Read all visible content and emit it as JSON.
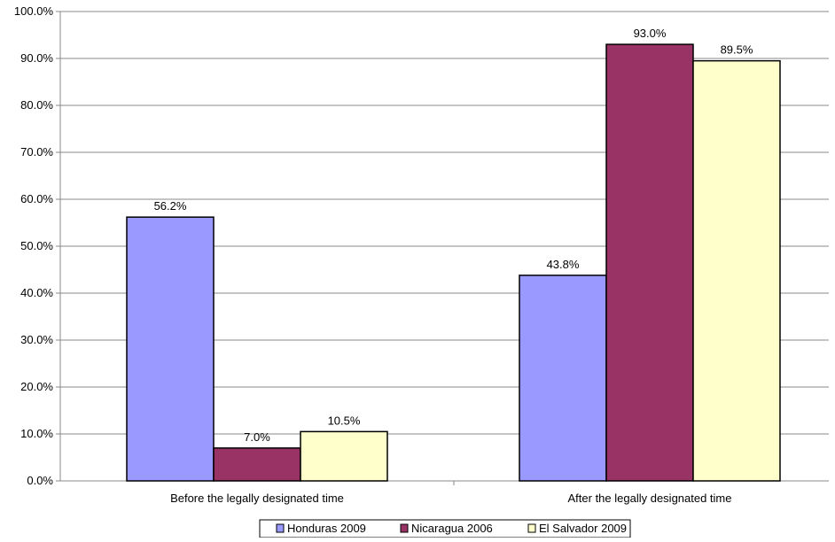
{
  "chart_data": {
    "type": "bar",
    "title": "",
    "xlabel": "",
    "ylabel": "",
    "categories": [
      "Before the legally designated time",
      "After the legally designated time"
    ],
    "series": [
      {
        "name": "Honduras 2009",
        "values": [
          56.2,
          43.8
        ],
        "color": "#9999ff"
      },
      {
        "name": "Nicaragua 2006",
        "values": [
          7.0,
          93.0
        ],
        "color": "#993366"
      },
      {
        "name": "El Salvador 2009",
        "values": [
          10.5,
          89.5
        ],
        "color": "#ffffcc"
      }
    ],
    "data_labels": [
      [
        "56.2%",
        "43.8%"
      ],
      [
        "7.0%",
        "93.0%"
      ],
      [
        "10.5%",
        "89.5%"
      ]
    ],
    "ylim": [
      0,
      100
    ],
    "y_ticks": [
      0,
      10,
      20,
      30,
      40,
      50,
      60,
      70,
      80,
      90,
      100
    ],
    "y_tick_labels": [
      "0.0%",
      "10.0%",
      "20.0%",
      "30.0%",
      "40.0%",
      "50.0%",
      "60.0%",
      "70.0%",
      "80.0%",
      "90.0%",
      "100.0%"
    ],
    "grid": true,
    "legend_position": "bottom"
  }
}
